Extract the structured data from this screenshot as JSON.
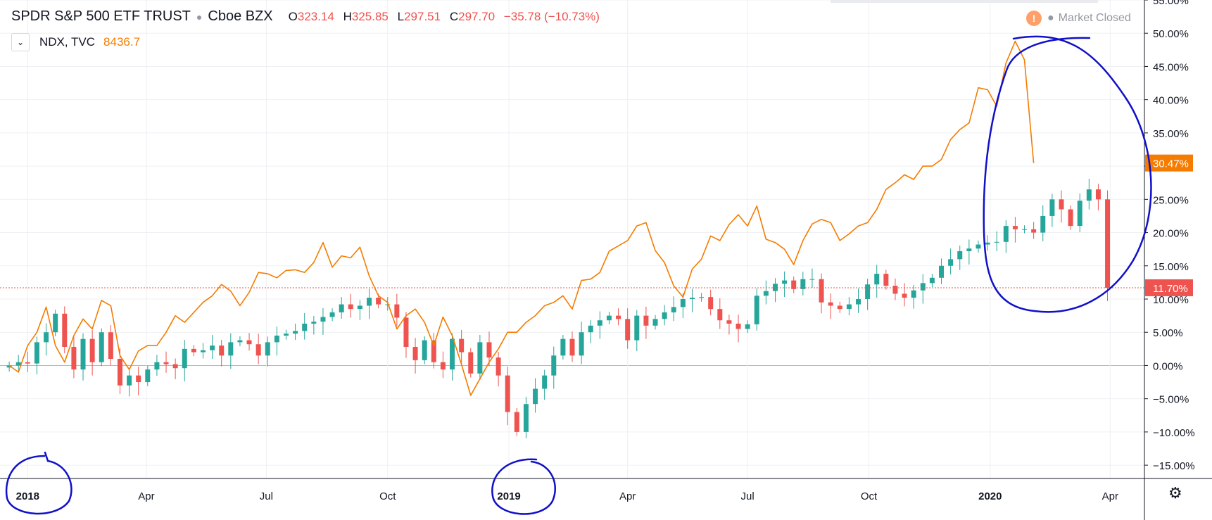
{
  "legend": {
    "symbol": "SPDR S&P 500 ETF TRUST",
    "exchange": "Cboe BZX",
    "ohlc": [
      {
        "k": "O",
        "v": "323.14"
      },
      {
        "k": "H",
        "v": "325.85"
      },
      {
        "k": "L",
        "v": "297.51"
      },
      {
        "k": "C",
        "v": "297.70"
      }
    ],
    "change": "−35.78 (−10.73%)",
    "compare_symbol": "NDX, TVC",
    "compare_value": "8436.7"
  },
  "status": {
    "label": "Market Closed",
    "icon": "warning-icon"
  },
  "colors": {
    "up": "#26a69a",
    "down": "#ef5350",
    "compare_line": "#f57c00",
    "price_line": "#ef5350",
    "annotation": "#1010c8"
  },
  "chart_data": {
    "type": "candlestick",
    "unit": "%",
    "y_axis": {
      "min": -17,
      "max": 55,
      "ticks": [
        55,
        50,
        45,
        40,
        35,
        30,
        25,
        20,
        15,
        10,
        5,
        0,
        -5,
        -10,
        -15
      ],
      "tick_labels": [
        "55.00%",
        "50.00%",
        "45.00%",
        "40.00%",
        "35.00%",
        "30.00%",
        "25.00%",
        "20.00%",
        "15.00%",
        "10.00%",
        "5.00%",
        "0.00%",
        "−5.00%",
        "−10.00%",
        "−15.00%"
      ]
    },
    "x_axis": {
      "ticks": [
        {
          "date": "2018-01-01",
          "label": "2018",
          "bold": true
        },
        {
          "date": "2018-04-01",
          "label": "Apr",
          "bold": false
        },
        {
          "date": "2018-07-01",
          "label": "Jul",
          "bold": false
        },
        {
          "date": "2018-10-01",
          "label": "Oct",
          "bold": false
        },
        {
          "date": "2019-01-01",
          "label": "2019",
          "bold": true
        },
        {
          "date": "2019-04-01",
          "label": "Apr",
          "bold": false
        },
        {
          "date": "2019-07-01",
          "label": "Jul",
          "bold": false
        },
        {
          "date": "2019-10-01",
          "label": "Oct",
          "bold": false
        },
        {
          "date": "2020-01-01",
          "label": "2020",
          "bold": true
        },
        {
          "date": "2020-04-01",
          "label": "Apr",
          "bold": false
        }
      ],
      "start": "2017-12-11",
      "end": "2020-04-27"
    },
    "price_lines": [
      {
        "value": 11.7,
        "label": "11.70%",
        "color": "#ef5350"
      },
      {
        "value": 30.47,
        "label": "30.47%",
        "color": "#f57c00"
      }
    ],
    "candles_weekly_close_pct": {
      "start_date": "2017-12-18",
      "values": [
        0,
        0.5,
        0.3,
        3.5,
        5.0,
        7.8,
        2.8,
        -0.6,
        4.0,
        0.5,
        5.0,
        1.0,
        -3.0,
        -1.5,
        -2.5,
        -0.6,
        0.5,
        0.2,
        -0.4,
        2.5,
        2.0,
        2.3,
        3.0,
        1.5,
        3.5,
        3.8,
        3.2,
        1.5,
        3.5,
        4.5,
        4.8,
        5.2,
        6.3,
        6.6,
        7.3,
        8.0,
        9.2,
        8.5,
        9.0,
        10.2,
        9.2,
        9.2,
        7.2,
        2.8,
        0.8,
        3.8,
        0.5,
        -0.6,
        4.0,
        2.0,
        -1.2,
        3.5,
        1.2,
        -1.5,
        -7.0,
        -10.0,
        -5.8,
        -3.5,
        -1.5,
        1.5,
        4.0,
        1.5,
        5.0,
        6.0,
        6.8,
        7.5,
        7.0,
        3.8,
        7.5,
        6.0,
        7.0,
        8.0,
        8.8,
        10.0,
        10.2,
        10.3,
        8.5,
        6.8,
        6.3,
        5.5,
        6.2,
        10.5,
        11.2,
        12.3,
        12.8,
        11.5,
        13.0,
        13.0,
        9.5,
        9.0,
        8.5,
        9.2,
        10.0,
        12.2,
        13.8,
        12.0,
        10.8,
        10.2,
        11.3,
        12.4,
        13.2,
        15.0,
        16.0,
        17.2,
        17.6,
        18.2,
        18.5,
        18.6,
        21.0,
        20.5,
        20.5,
        20.0,
        22.5,
        25.0,
        23.5,
        21.0,
        24.8,
        26.5,
        25.0,
        11.7
      ]
    },
    "series": [
      {
        "name": "NDX, TVC",
        "type": "line",
        "color": "#f57c00",
        "start_date": "2017-12-18",
        "values": [
          0,
          -1.0,
          3.0,
          5.0,
          8.8,
          3.0,
          0.5,
          4.5,
          7.0,
          5.5,
          9.8,
          9.0,
          1.5,
          -0.6,
          2.2,
          3.0,
          3.0,
          5.0,
          7.5,
          6.5,
          8.0,
          9.5,
          10.5,
          12.2,
          11.2,
          9.0,
          11.0,
          14.0,
          13.8,
          13.2,
          14.3,
          14.4,
          14.0,
          15.5,
          18.5,
          14.8,
          16.5,
          16.2,
          17.8,
          13.5,
          10.5,
          9.5,
          5.5,
          7.5,
          8.5,
          6.5,
          3.0,
          7.3,
          4.5,
          0.2,
          -4.5,
          -2.0,
          0.5,
          2.5,
          5.0,
          5.0,
          6.5,
          7.5,
          9.0,
          9.5,
          10.5,
          8.5,
          12.8,
          13.0,
          14.0,
          17.2,
          18.0,
          18.8,
          21.0,
          21.5,
          17.3,
          15.5,
          12.0,
          10.3,
          14.5,
          16.0,
          19.5,
          18.8,
          21.2,
          22.7,
          21.0,
          24.0,
          19.0,
          18.5,
          17.5,
          15.2,
          18.8,
          21.3,
          22.0,
          21.5,
          18.8,
          19.8,
          21.0,
          21.5,
          23.5,
          26.5,
          27.5,
          28.7,
          28.0,
          30.0,
          30.0,
          31.0,
          34.0,
          35.5,
          36.5,
          41.8,
          41.5,
          39.0,
          45.5,
          48.8,
          46.0,
          30.47
        ]
      }
    ]
  }
}
